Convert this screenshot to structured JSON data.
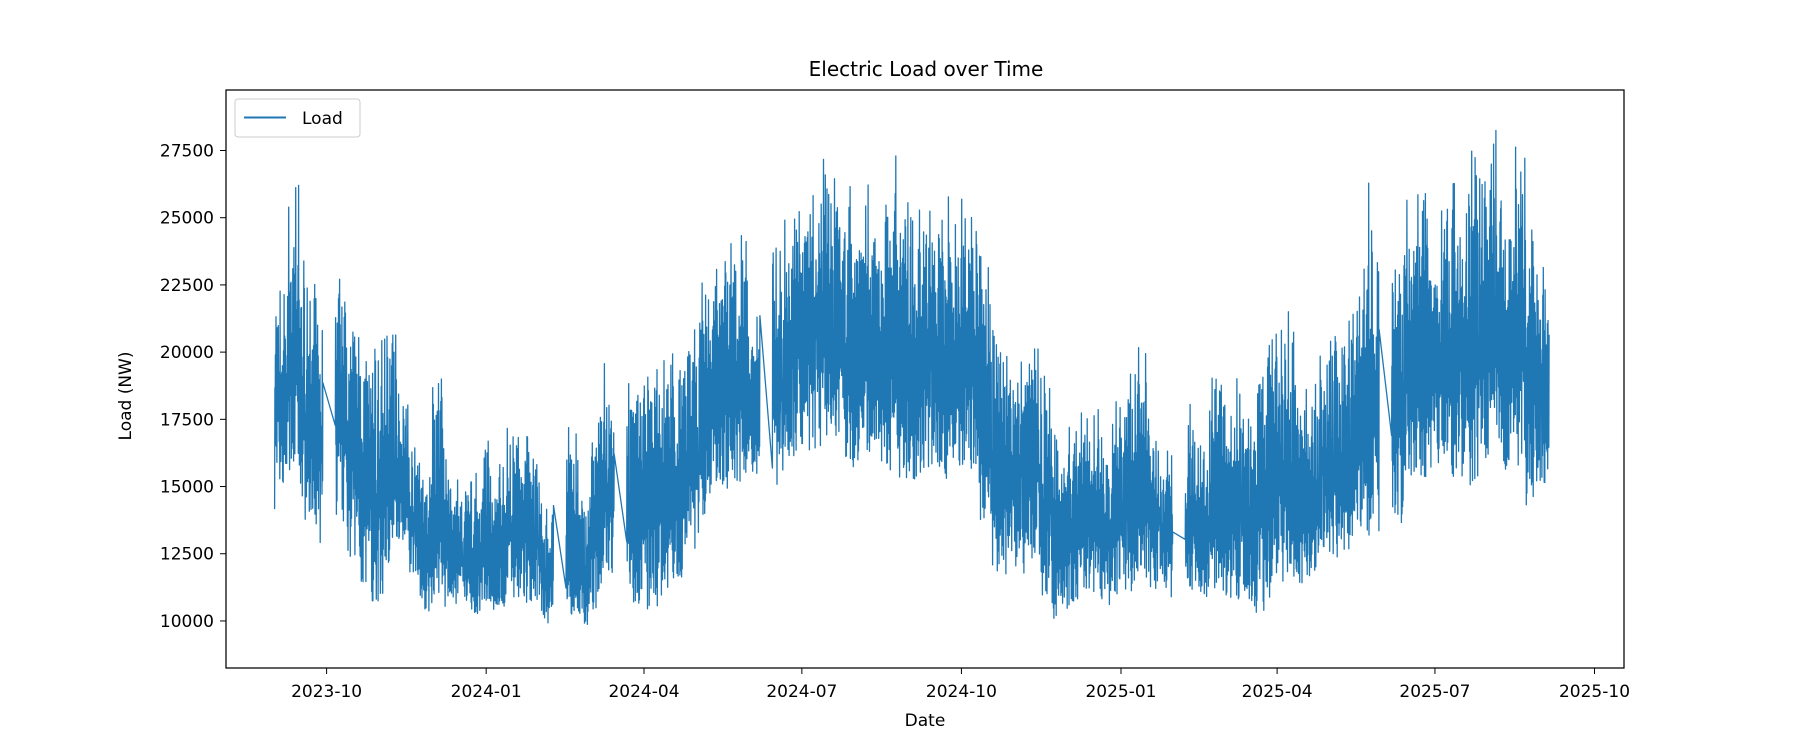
{
  "chart_data": {
    "type": "line",
    "title": "Electric Load over Time",
    "xlabel": "Date",
    "ylabel": "Load (NW)",
    "xlim": [
      "2023-08-04",
      "2025-10-18"
    ],
    "ylim": [
      8250,
      29750
    ],
    "grid": false,
    "legend": {
      "placement": "upper-left",
      "entries": [
        "Load"
      ]
    },
    "colors": {
      "series": "#1f77b4",
      "axes": "#000000",
      "background": "#ffffff"
    },
    "x_ticks": [
      "2023-10-01",
      "2024-01-01",
      "2024-04-01",
      "2024-07-01",
      "2024-10-01",
      "2025-01-01",
      "2025-04-01",
      "2025-07-01",
      "2025-10-01"
    ],
    "x_tick_labels": [
      "2023-10",
      "2024-01",
      "2024-04",
      "2024-07",
      "2024-10",
      "2025-01",
      "2025-04",
      "2025-07",
      "2025-10"
    ],
    "y_ticks": [
      10000,
      12500,
      15000,
      17500,
      20000,
      22500,
      25000,
      27500
    ],
    "y_tick_labels": [
      "10000",
      "12500",
      "15000",
      "17500",
      "20000",
      "22500",
      "25000",
      "27500"
    ],
    "envelope": {
      "description_units": "weekly ranges of load (NW); series oscillates between low and high daily",
      "dates": [
        "2023-09-01",
        "2023-09-08",
        "2023-09-15",
        "2023-09-22",
        "2023-10-06",
        "2023-10-13",
        "2023-10-20",
        "2023-10-27",
        "2023-11-03",
        "2023-11-10",
        "2023-11-17",
        "2023-11-24",
        "2023-12-01",
        "2023-12-08",
        "2023-12-15",
        "2023-12-22",
        "2023-12-29",
        "2024-01-05",
        "2024-01-12",
        "2024-01-19",
        "2024-01-26",
        "2024-02-02",
        "2024-02-16",
        "2024-02-23",
        "2024-03-01",
        "2024-03-08",
        "2024-03-22",
        "2024-03-29",
        "2024-04-05",
        "2024-04-12",
        "2024-04-19",
        "2024-04-26",
        "2024-05-03",
        "2024-05-10",
        "2024-05-17",
        "2024-05-24",
        "2024-05-31",
        "2024-06-14",
        "2024-06-21",
        "2024-06-28",
        "2024-07-05",
        "2024-07-12",
        "2024-07-19",
        "2024-07-26",
        "2024-08-02",
        "2024-08-09",
        "2024-08-16",
        "2024-08-23",
        "2024-08-30",
        "2024-09-06",
        "2024-09-13",
        "2024-09-20",
        "2024-09-27",
        "2024-10-04",
        "2024-10-11",
        "2024-10-18",
        "2024-10-25",
        "2024-11-01",
        "2024-11-08",
        "2024-11-15",
        "2024-11-22",
        "2024-11-29",
        "2024-12-06",
        "2024-12-13",
        "2024-12-20",
        "2024-12-27",
        "2025-01-03",
        "2025-01-10",
        "2025-01-17",
        "2025-01-24",
        "2025-02-07",
        "2025-02-14",
        "2025-02-21",
        "2025-02-28",
        "2025-03-07",
        "2025-03-14",
        "2025-03-21",
        "2025-03-28",
        "2025-04-04",
        "2025-04-11",
        "2025-04-18",
        "2025-04-25",
        "2025-05-02",
        "2025-05-09",
        "2025-05-16",
        "2025-05-23",
        "2025-06-06",
        "2025-06-13",
        "2025-06-20",
        "2025-06-27",
        "2025-07-04",
        "2025-07-11",
        "2025-07-18",
        "2025-07-25",
        "2025-08-01",
        "2025-08-08",
        "2025-08-15",
        "2025-08-22",
        "2025-08-29"
      ],
      "low": [
        12500,
        14000,
        12000,
        11600,
        12200,
        11000,
        9800,
        9000,
        10500,
        12000,
        11000,
        9500,
        9700,
        9600,
        9500,
        9400,
        9600,
        9500,
        9700,
        9500,
        9800,
        9300,
        8900,
        9000,
        9300,
        10500,
        9200,
        8800,
        8900,
        9000,
        10000,
        11500,
        12500,
        13500,
        13500,
        13500,
        14500,
        13200,
        14500,
        15000,
        14800,
        15000,
        15000,
        13800,
        14500,
        14500,
        14000,
        13000,
        13500,
        14000,
        14000,
        13500,
        13800,
        14000,
        12200,
        10500,
        10300,
        10500,
        11000,
        9500,
        9000,
        9200,
        9500,
        9600,
        9500,
        9600,
        9800,
        10000,
        10000,
        10000,
        9700,
        9800,
        9600,
        9500,
        9100,
        8800,
        9000,
        9500,
        10000,
        10000,
        10500,
        11000,
        10800,
        11000,
        12000,
        11200,
        11700,
        13600,
        13600,
        14500,
        14200,
        13500,
        13000,
        13700,
        14500,
        13500,
        14000,
        12500,
        13800
      ],
      "high": [
        23800,
        26300,
        24900,
        22800,
        24000,
        22000,
        20600,
        20800,
        21800,
        19400,
        17000,
        15800,
        20000,
        16200,
        15900,
        15500,
        16800,
        16000,
        17900,
        17500,
        16500,
        14500,
        17400,
        15200,
        18400,
        20000,
        20700,
        20600,
        20100,
        22200,
        21200,
        21500,
        23000,
        24700,
        25300,
        25200,
        22000,
        25700,
        26000,
        26500,
        27000,
        27800,
        27300,
        26800,
        26500,
        26000,
        27200,
        28400,
        26600,
        26100,
        26200,
        26000,
        26200,
        26300,
        24000,
        21500,
        21200,
        21500,
        21500,
        20000,
        17500,
        18000,
        18300,
        18500,
        17500,
        19300,
        20000,
        21600,
        18000,
        17200,
        18300,
        17000,
        20800,
        19000,
        20200,
        20100,
        21000,
        22500,
        22000,
        20200,
        19000,
        21800,
        21500,
        22200,
        24100,
        26400,
        25300,
        26200,
        26500,
        24200,
        26200,
        27200,
        28500,
        27400,
        28900,
        27500,
        28600,
        26600,
        24100
      ]
    }
  }
}
